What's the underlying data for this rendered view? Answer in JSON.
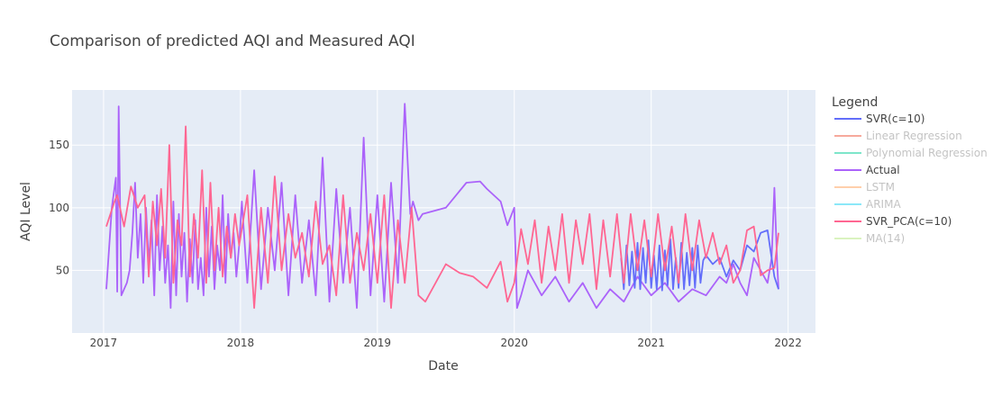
{
  "chart_data": {
    "type": "line",
    "title": "Comparison of predicted AQI and Measured AQI",
    "xlabel": "Date",
    "ylabel": "AQI Level",
    "x_ticks": [
      "2017",
      "2018",
      "2019",
      "2020",
      "2021",
      "2022"
    ],
    "y_ticks": [
      50,
      100,
      150
    ],
    "xlim": [
      2016.77,
      2022.2
    ],
    "ylim": [
      0,
      194
    ],
    "grid": true,
    "legend_title": "Legend",
    "legend_position": "right",
    "series": [
      {
        "name": "SVR(c=10)",
        "color": "#636efa",
        "visible": true,
        "x": [
          2020.78,
          2020.8,
          2020.82,
          2020.84,
          2020.86,
          2020.88,
          2020.9,
          2020.92,
          2020.94,
          2020.96,
          2020.98,
          2021.0,
          2021.02,
          2021.04,
          2021.06,
          2021.08,
          2021.1,
          2021.12,
          2021.14,
          2021.16,
          2021.18,
          2021.2,
          2021.22,
          2021.24,
          2021.26,
          2021.28,
          2021.3,
          2021.32,
          2021.34,
          2021.36,
          2021.38,
          2021.4,
          2021.45,
          2021.5,
          2021.55,
          2021.6,
          2021.65,
          2021.7,
          2021.75,
          2021.8,
          2021.85,
          2021.9,
          2021.93
        ],
        "y": [
          60,
          35,
          70,
          38,
          65,
          36,
          72,
          35,
          68,
          40,
          74,
          36,
          62,
          35,
          70,
          34,
          66,
          38,
          75,
          35,
          60,
          36,
          72,
          35,
          64,
          38,
          68,
          36,
          70,
          40,
          58,
          62,
          55,
          60,
          45,
          58,
          50,
          70,
          65,
          80,
          82,
          45,
          35
        ]
      },
      {
        "name": "Linear Regression",
        "color": "#ef553b",
        "visible": "legendonly",
        "x": [],
        "y": []
      },
      {
        "name": "Polynomial Regression",
        "color": "#00cc96",
        "visible": "legendonly",
        "x": [],
        "y": []
      },
      {
        "name": "Actual",
        "color": "#ab63fa",
        "visible": true,
        "x": [
          2017.02,
          2017.06,
          2017.09,
          2017.1,
          2017.11,
          2017.13,
          2017.15,
          2017.17,
          2017.19,
          2017.21,
          2017.23,
          2017.25,
          2017.27,
          2017.29,
          2017.31,
          2017.33,
          2017.35,
          2017.37,
          2017.39,
          2017.41,
          2017.43,
          2017.45,
          2017.47,
          2017.49,
          2017.51,
          2017.53,
          2017.55,
          2017.57,
          2017.59,
          2017.61,
          2017.63,
          2017.65,
          2017.67,
          2017.69,
          2017.71,
          2017.73,
          2017.75,
          2017.77,
          2017.79,
          2017.81,
          2017.83,
          2017.85,
          2017.87,
          2017.89,
          2017.91,
          2017.93,
          2017.95,
          2017.97,
          2017.99,
          2018.01,
          2018.05,
          2018.1,
          2018.15,
          2018.2,
          2018.25,
          2018.3,
          2018.35,
          2018.4,
          2018.45,
          2018.5,
          2018.55,
          2018.6,
          2018.65,
          2018.7,
          2018.75,
          2018.8,
          2018.85,
          2018.9,
          2018.95,
          2019.0,
          2019.05,
          2019.1,
          2019.15,
          2019.2,
          2019.24,
          2019.26,
          2019.3,
          2019.33,
          2019.5,
          2019.65,
          2019.75,
          2019.8,
          2019.9,
          2019.95,
          2020.0,
          2020.02,
          2020.05,
          2020.1,
          2020.2,
          2020.3,
          2020.4,
          2020.5,
          2020.6,
          2020.7,
          2020.8,
          2020.9,
          2021.0,
          2021.1,
          2021.2,
          2021.3,
          2021.4,
          2021.5,
          2021.55,
          2021.6,
          2021.65,
          2021.7,
          2021.75,
          2021.8,
          2021.85,
          2021.88,
          2021.9,
          2021.92,
          2021.93
        ],
        "y": [
          35,
          100,
          124,
          33,
          181,
          30,
          35,
          40,
          50,
          80,
          120,
          60,
          95,
          40,
          100,
          55,
          90,
          30,
          110,
          50,
          85,
          40,
          70,
          20,
          105,
          30,
          95,
          45,
          80,
          25,
          75,
          40,
          90,
          35,
          60,
          30,
          100,
          45,
          85,
          35,
          70,
          50,
          110,
          40,
          95,
          60,
          80,
          45,
          70,
          105,
          40,
          130,
          35,
          100,
          50,
          120,
          30,
          110,
          40,
          90,
          30,
          140,
          25,
          115,
          40,
          100,
          20,
          156,
          30,
          110,
          25,
          120,
          40,
          183,
          95,
          105,
          90,
          95,
          100,
          120,
          121,
          115,
          105,
          86,
          100,
          20,
          30,
          50,
          30,
          45,
          25,
          40,
          20,
          35,
          25,
          45,
          30,
          40,
          25,
          35,
          30,
          45,
          40,
          55,
          40,
          30,
          60,
          50,
          40,
          60,
          116,
          55,
          35
        ]
      },
      {
        "name": "LSTM",
        "color": "#ffa15a",
        "visible": "legendonly",
        "x": [],
        "y": []
      },
      {
        "name": "ARIMA",
        "color": "#19d3f3",
        "visible": "legendonly",
        "x": [],
        "y": []
      },
      {
        "name": "SVR_PCA(c=10)",
        "color": "#ff6692",
        "visible": true,
        "x": [
          2017.02,
          2017.08,
          2017.1,
          2017.15,
          2017.2,
          2017.25,
          2017.3,
          2017.33,
          2017.36,
          2017.39,
          2017.42,
          2017.45,
          2017.48,
          2017.51,
          2017.54,
          2017.57,
          2017.6,
          2017.63,
          2017.66,
          2017.69,
          2017.72,
          2017.75,
          2017.78,
          2017.81,
          2017.84,
          2017.87,
          2017.9,
          2017.93,
          2017.96,
          2017.99,
          2018.05,
          2018.1,
          2018.15,
          2018.2,
          2018.25,
          2018.3,
          2018.35,
          2018.4,
          2018.45,
          2018.5,
          2018.55,
          2018.6,
          2018.65,
          2018.7,
          2018.75,
          2018.8,
          2018.85,
          2018.9,
          2018.95,
          2019.0,
          2019.05,
          2019.1,
          2019.15,
          2019.2,
          2019.25,
          2019.3,
          2019.35,
          2019.5,
          2019.6,
          2019.7,
          2019.8,
          2019.9,
          2019.95,
          2020.0,
          2020.05,
          2020.1,
          2020.15,
          2020.2,
          2020.25,
          2020.3,
          2020.35,
          2020.4,
          2020.45,
          2020.5,
          2020.55,
          2020.6,
          2020.65,
          2020.7,
          2020.75,
          2020.8,
          2020.85,
          2020.9,
          2020.95,
          2021.0,
          2021.05,
          2021.1,
          2021.15,
          2021.2,
          2021.25,
          2021.3,
          2021.35,
          2021.4,
          2021.45,
          2021.5,
          2021.55,
          2021.6,
          2021.65,
          2021.7,
          2021.75,
          2021.8,
          2021.85,
          2021.9,
          2021.93
        ],
        "y": [
          85,
          105,
          110,
          85,
          117,
          100,
          110,
          45,
          105,
          70,
          115,
          60,
          150,
          40,
          90,
          70,
          165,
          45,
          95,
          60,
          130,
          40,
          120,
          50,
          100,
          45,
          85,
          60,
          95,
          70,
          110,
          20,
          100,
          40,
          125,
          50,
          95,
          60,
          80,
          45,
          105,
          55,
          70,
          30,
          110,
          40,
          80,
          50,
          95,
          40,
          110,
          20,
          90,
          40,
          100,
          30,
          25,
          55,
          48,
          45,
          36,
          57,
          25,
          40,
          83,
          55,
          90,
          40,
          85,
          50,
          95,
          40,
          90,
          55,
          95,
          35,
          90,
          45,
          95,
          40,
          95,
          50,
          90,
          45,
          95,
          50,
          85,
          40,
          95,
          50,
          90,
          60,
          80,
          55,
          70,
          40,
          50,
          82,
          85,
          46,
          50,
          52,
          80
        ]
      },
      {
        "name": "MA(14)",
        "color": "#b6e880",
        "visible": "legendonly",
        "x": [],
        "y": []
      }
    ]
  }
}
